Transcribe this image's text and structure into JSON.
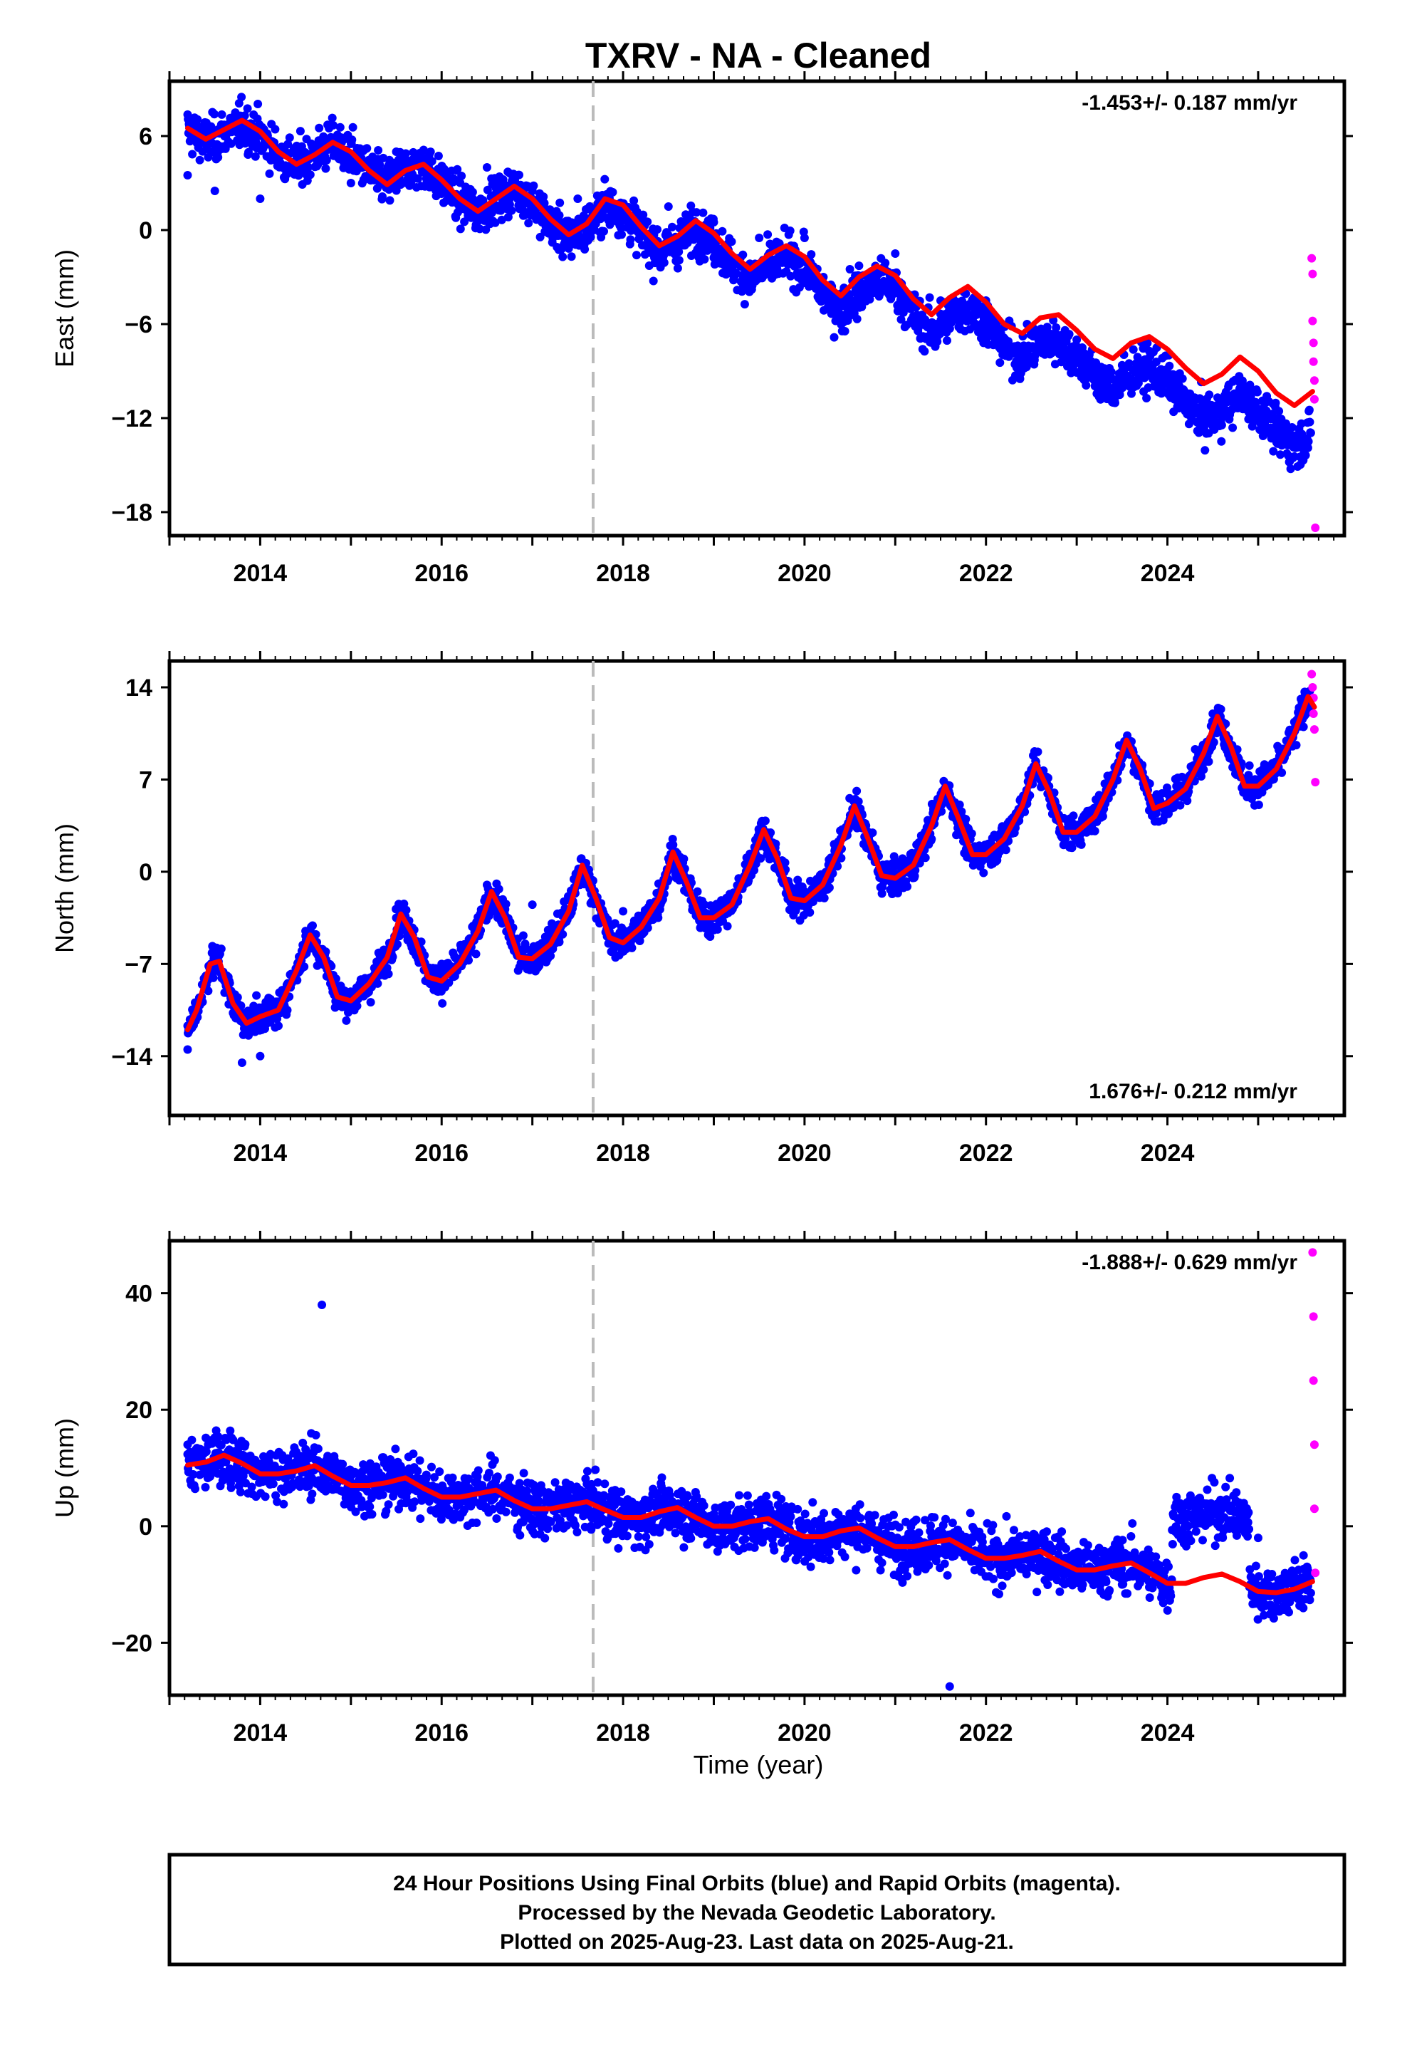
{
  "title": "TXRV  - NA - Cleaned",
  "xlabel": "Time (year)",
  "x_tick_labels": [
    "2014",
    "2016",
    "2018",
    "2020",
    "2022",
    "2024"
  ],
  "caption": [
    "24 Hour Positions Using Final Orbits (blue) and Rapid Orbits (magenta).",
    "Processed by the Nevada Geodetic Laboratory.",
    "Plotted on 2025-Aug-23. Last data on 2025-Aug-21."
  ],
  "colors": {
    "final_orbits": "#0000ff",
    "rapid_orbits": "#ff00ff",
    "model_fit": "#ff0000",
    "event_line": "#bbbbbb"
  },
  "chart_data": [
    {
      "type": "scatter",
      "ylabel": "East (mm)",
      "xlim": [
        2013.0,
        2025.95
      ],
      "ylim": [
        -19.5,
        9.5
      ],
      "yticks": [
        -18,
        -12,
        -6,
        0,
        6
      ],
      "rate_label": "-1.453+/- 0.187 mm/yr",
      "rate_position": "top-right",
      "event_line_x": 2017.67,
      "series": [
        {
          "role": "final_orbits_daily",
          "approx_points_x": [
            2013.2,
            2013.5,
            2014.0,
            2014.5,
            2015.0,
            2015.5,
            2016.0,
            2016.5,
            2017.0,
            2017.5,
            2018.0,
            2018.5,
            2019.0,
            2019.5,
            2020.0,
            2020.5,
            2021.0,
            2021.5,
            2022.0,
            2022.5,
            2023.0,
            2023.5,
            2024.0,
            2024.5,
            2025.0,
            2025.5
          ],
          "approx_points_y": [
            3.5,
            2.5,
            2.0,
            4.5,
            3.0,
            5.0,
            3.0,
            4.0,
            2.5,
            2.0,
            1.0,
            1.5,
            0.5,
            -0.5,
            -0.5,
            -2.5,
            -1.5,
            -4.5,
            -4.5,
            -6.5,
            -7.0,
            -9.0,
            -9.5,
            -12.0,
            -12.0,
            -13.5
          ]
        },
        {
          "role": "rapid_orbits_daily",
          "approx_points_x": [
            2025.59,
            2025.6,
            2025.6,
            2025.61,
            2025.61,
            2025.62,
            2025.62,
            2025.63
          ],
          "approx_points_y": [
            -1.8,
            -2.8,
            -5.8,
            -7.2,
            -8.4,
            -9.6,
            -10.8,
            -19.0
          ]
        },
        {
          "role": "model_fit",
          "x": [
            2013.2,
            2013.4,
            2013.6,
            2013.8,
            2014.0,
            2014.2,
            2014.4,
            2014.6,
            2014.8,
            2015.0,
            2015.2,
            2015.4,
            2015.6,
            2015.8,
            2016.0,
            2016.2,
            2016.4,
            2016.6,
            2016.8,
            2017.0,
            2017.2,
            2017.4,
            2017.6,
            2017.8,
            2018.0,
            2018.2,
            2018.4,
            2018.6,
            2018.8,
            2019.0,
            2019.2,
            2019.4,
            2019.6,
            2019.8,
            2020.0,
            2020.2,
            2020.4,
            2020.6,
            2020.8,
            2021.0,
            2021.2,
            2021.4,
            2021.6,
            2021.8,
            2022.0,
            2022.2,
            2022.4,
            2022.6,
            2022.8,
            2023.0,
            2023.2,
            2023.4,
            2023.6,
            2023.8,
            2024.0,
            2024.2,
            2024.4,
            2024.6,
            2024.8,
            2025.0,
            2025.2,
            2025.4,
            2025.6
          ],
          "y": [
            6.5,
            5.8,
            6.4,
            7.0,
            6.3,
            5.0,
            4.2,
            4.8,
            5.6,
            5.0,
            3.8,
            2.9,
            3.8,
            4.2,
            3.2,
            2.0,
            1.2,
            2.0,
            2.8,
            2.0,
            0.7,
            -0.3,
            0.4,
            2.0,
            1.6,
            0.2,
            -1.0,
            -0.4,
            0.6,
            -0.2,
            -1.5,
            -2.5,
            -1.6,
            -1.0,
            -1.7,
            -3.2,
            -4.2,
            -3.0,
            -2.3,
            -2.9,
            -4.4,
            -5.4,
            -4.3,
            -3.6,
            -4.6,
            -6.0,
            -6.6,
            -5.6,
            -5.4,
            -6.4,
            -7.6,
            -8.2,
            -7.2,
            -6.8,
            -7.6,
            -8.8,
            -9.8,
            -9.2,
            -8.1,
            -9.0,
            -10.4,
            -11.2,
            -10.3
          ]
        }
      ]
    },
    {
      "type": "scatter",
      "ylabel": "North (mm)",
      "xlim": [
        2013.0,
        2025.95
      ],
      "ylim": [
        -18.5,
        16.0
      ],
      "yticks": [
        -14,
        -7,
        0,
        7,
        14
      ],
      "rate_label": "1.676+/- 0.212 mm/yr",
      "rate_position": "bottom-right",
      "event_line_x": 2017.67,
      "series": [
        {
          "role": "final_orbits_daily",
          "approx_points_x": [
            2013.2,
            2013.5,
            2013.8,
            2014.0,
            2014.5,
            2015.0,
            2015.5,
            2016.0,
            2016.5,
            2017.0,
            2017.5,
            2018.0,
            2018.5,
            2019.0,
            2019.5,
            2020.0,
            2020.5,
            2021.0,
            2021.5,
            2022.0,
            2022.5,
            2023.0,
            2023.5,
            2024.0,
            2024.5,
            2025.0,
            2025.5
          ],
          "approx_points_y": [
            -13.5,
            -7.0,
            -14.5,
            -14.0,
            -4.5,
            -9.5,
            -3.5,
            -7.0,
            -1.0,
            -2.5,
            0.0,
            -3.0,
            1.0,
            -3.0,
            3.0,
            -1.5,
            4.0,
            -0.5,
            5.5,
            1.5,
            7.5,
            3.0,
            9.5,
            6.0,
            12.0,
            7.0,
            11.0
          ]
        },
        {
          "role": "rapid_orbits_daily",
          "approx_points_x": [
            2025.59,
            2025.6,
            2025.61,
            2025.61,
            2025.62,
            2025.63
          ],
          "approx_points_y": [
            15.0,
            14.0,
            13.2,
            12.0,
            10.8,
            6.8
          ]
        },
        {
          "role": "model_fit",
          "x": [
            2013.2,
            2013.3,
            2013.45,
            2013.55,
            2013.7,
            2013.85,
            2014.0,
            2014.2,
            2014.4,
            2014.55,
            2014.7,
            2014.85,
            2015.0,
            2015.2,
            2015.4,
            2015.55,
            2015.7,
            2015.85,
            2016.0,
            2016.2,
            2016.4,
            2016.55,
            2016.7,
            2016.85,
            2017.0,
            2017.2,
            2017.4,
            2017.55,
            2017.7,
            2017.85,
            2018.0,
            2018.2,
            2018.4,
            2018.55,
            2018.7,
            2018.85,
            2019.0,
            2019.2,
            2019.4,
            2019.55,
            2019.7,
            2019.85,
            2020.0,
            2020.2,
            2020.4,
            2020.55,
            2020.7,
            2020.85,
            2021.0,
            2021.2,
            2021.4,
            2021.55,
            2021.7,
            2021.85,
            2022.0,
            2022.2,
            2022.4,
            2022.55,
            2022.7,
            2022.85,
            2023.0,
            2023.2,
            2023.4,
            2023.55,
            2023.7,
            2023.85,
            2024.0,
            2024.2,
            2024.4,
            2024.55,
            2024.7,
            2024.85,
            2025.0,
            2025.2,
            2025.4,
            2025.55,
            2025.62
          ],
          "y": [
            -12.0,
            -10.5,
            -7.0,
            -6.8,
            -10.0,
            -11.5,
            -11.0,
            -10.5,
            -7.5,
            -4.8,
            -6.5,
            -9.5,
            -9.8,
            -8.5,
            -6.5,
            -3.2,
            -5.0,
            -8.0,
            -8.3,
            -7.0,
            -4.5,
            -1.5,
            -3.5,
            -6.5,
            -6.6,
            -5.5,
            -3.0,
            0.5,
            -2.0,
            -5.0,
            -5.4,
            -4.2,
            -2.0,
            1.5,
            -0.8,
            -3.5,
            -3.5,
            -2.5,
            0.5,
            3.2,
            1.0,
            -2.0,
            -2.2,
            -1.0,
            2.0,
            5.0,
            2.5,
            -0.3,
            -0.5,
            0.5,
            3.5,
            6.5,
            4.0,
            1.3,
            1.3,
            2.5,
            5.0,
            8.2,
            6.0,
            3.0,
            3.0,
            4.2,
            7.0,
            10.0,
            7.8,
            4.8,
            5.2,
            6.3,
            9.0,
            11.8,
            9.5,
            6.5,
            6.5,
            7.8,
            10.5,
            13.3,
            12.5
          ]
        }
      ]
    },
    {
      "type": "scatter",
      "ylabel": "Up (mm)",
      "xlim": [
        2013.0,
        2025.95
      ],
      "ylim": [
        -29.0,
        49.0
      ],
      "yticks": [
        -20,
        0,
        20,
        40
      ],
      "rate_label": "-1.888+/- 0.629 mm/yr",
      "rate_position": "top-right",
      "event_line_x": 2017.67,
      "series": [
        {
          "role": "final_orbits_daily",
          "approx_points_x": [
            2013.2,
            2013.5,
            2014.0,
            2014.5,
            2014.68,
            2015.0,
            2015.5,
            2016.0,
            2016.5,
            2017.0,
            2017.5,
            2018.0,
            2018.5,
            2019.0,
            2019.5,
            2020.0,
            2020.5,
            2021.0,
            2021.5,
            2021.6,
            2022.0,
            2022.5,
            2023.0,
            2023.5,
            2024.0,
            2024.1,
            2024.5,
            2025.0,
            2025.5
          ],
          "approx_points_y": [
            14.0,
            10.0,
            8.0,
            11.0,
            38.0,
            7.0,
            9.0,
            5.0,
            6.0,
            4.0,
            5.0,
            2.0,
            3.0,
            1.0,
            0.0,
            -2.0,
            -2.0,
            -5.0,
            -4.0,
            -27.5,
            -6.0,
            -6.0,
            -9.0,
            -10.0,
            -11.0,
            5.0,
            3.0,
            -2.0,
            -5.0
          ]
        },
        {
          "role": "rapid_orbits_daily",
          "approx_points_x": [
            2025.6,
            2025.61,
            2025.61,
            2025.62,
            2025.62,
            2025.63
          ],
          "approx_points_y": [
            47.0,
            36.0,
            25.0,
            14.0,
            3.0,
            -8.0
          ]
        },
        {
          "role": "model_fit",
          "x": [
            2013.2,
            2013.4,
            2013.6,
            2013.8,
            2014.0,
            2014.2,
            2014.4,
            2014.6,
            2014.8,
            2015.0,
            2015.2,
            2015.4,
            2015.6,
            2015.8,
            2016.0,
            2016.2,
            2016.4,
            2016.6,
            2016.8,
            2017.0,
            2017.2,
            2017.4,
            2017.6,
            2017.8,
            2018.0,
            2018.2,
            2018.4,
            2018.6,
            2018.8,
            2019.0,
            2019.2,
            2019.4,
            2019.6,
            2019.8,
            2020.0,
            2020.2,
            2020.4,
            2020.6,
            2020.8,
            2021.0,
            2021.2,
            2021.4,
            2021.6,
            2021.8,
            2022.0,
            2022.2,
            2022.4,
            2022.6,
            2022.8,
            2023.0,
            2023.2,
            2023.4,
            2023.6,
            2023.8,
            2024.0,
            2024.2,
            2024.4,
            2024.6,
            2024.8,
            2025.0,
            2025.2,
            2025.4,
            2025.6
          ],
          "y": [
            10.5,
            11.0,
            12.2,
            10.8,
            9.0,
            9.0,
            9.5,
            10.4,
            8.6,
            7.0,
            7.0,
            7.5,
            8.3,
            6.5,
            5.0,
            5.0,
            5.6,
            6.2,
            4.4,
            3.0,
            3.0,
            3.6,
            4.2,
            2.8,
            1.5,
            1.5,
            2.5,
            3.2,
            1.5,
            0.0,
            0.0,
            0.8,
            1.3,
            -0.5,
            -1.8,
            -1.8,
            -0.8,
            -0.3,
            -2.0,
            -3.5,
            -3.5,
            -2.8,
            -2.3,
            -4.0,
            -5.5,
            -5.5,
            -5.0,
            -4.3,
            -6.0,
            -7.5,
            -7.5,
            -6.8,
            -6.3,
            -8.0,
            -9.8,
            -9.8,
            -8.8,
            -8.2,
            -9.5,
            -11.2,
            -11.4,
            -10.8,
            -9.5
          ]
        }
      ]
    }
  ]
}
